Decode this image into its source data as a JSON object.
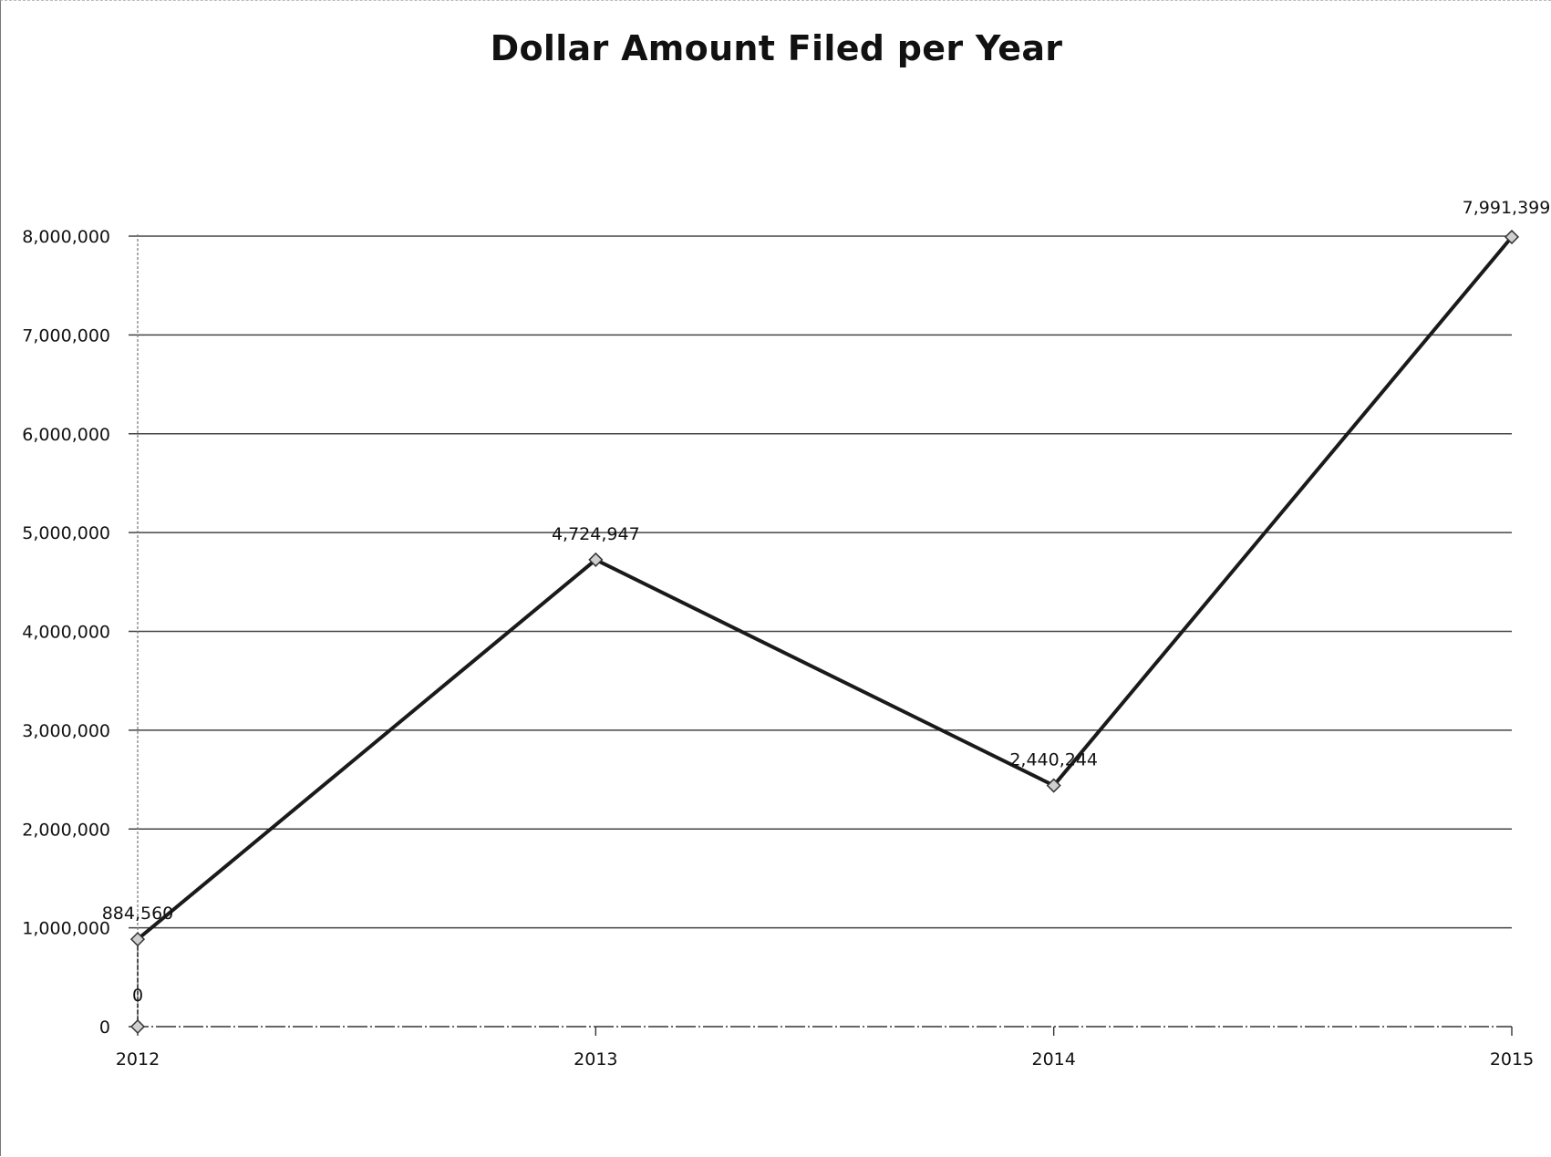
{
  "chart_data": {
    "type": "line",
    "title": "Dollar Amount Filed per Year",
    "xlabel": "",
    "ylabel": "",
    "x_tick_labels": [
      "2012",
      "2013",
      "2014",
      "2015"
    ],
    "y_tick_labels": [
      "0",
      "1,000,000",
      "2,000,000",
      "3,000,000",
      "4,000,000",
      "5,000,000",
      "6,000,000",
      "7,000,000",
      "8,000,000"
    ],
    "ylim": [
      0,
      8000000
    ],
    "xlim": [
      2012,
      2015
    ],
    "grid": true,
    "legend": "none",
    "series": [
      {
        "points": [
          {
            "x": 2012,
            "y": 0,
            "label": "0"
          },
          {
            "x": 2012,
            "y": 884560,
            "label": "884,560"
          },
          {
            "x": 2013,
            "y": 4724947,
            "label": "4,724,947"
          },
          {
            "x": 2014,
            "y": 2440244,
            "label": "2,440,244"
          },
          {
            "x": 2015,
            "y": 7991399,
            "label": "7,991,399"
          }
        ],
        "color": "#1a1a1a"
      }
    ]
  }
}
